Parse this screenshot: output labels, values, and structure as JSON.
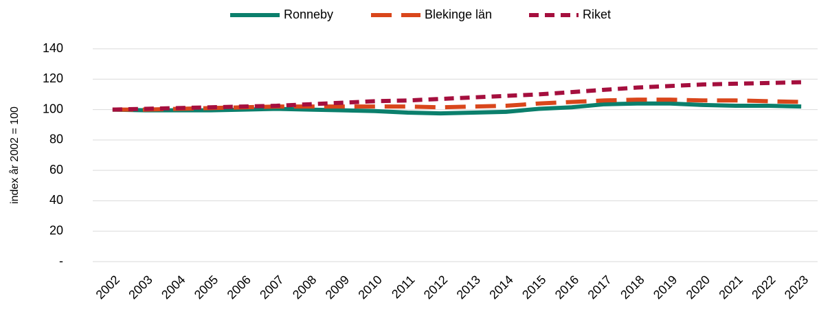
{
  "chart_data": {
    "type": "line",
    "y_label": "index år 2002 = 100",
    "categories": [
      "2002",
      "2003",
      "2004",
      "2005",
      "2006",
      "2007",
      "2008",
      "2009",
      "2010",
      "2011",
      "2012",
      "2013",
      "2014",
      "2015",
      "2016",
      "2017",
      "2018",
      "2019",
      "2020",
      "2021",
      "2022",
      "2023"
    ],
    "series": [
      {
        "name": "Ronneby",
        "color": "#0b7f6c",
        "dash": "solid",
        "values": [
          100,
          99.5,
          99.5,
          99.5,
          100,
          100.5,
          100,
          99.5,
          99,
          98,
          97.5,
          98,
          98.5,
          100.5,
          101.5,
          103.5,
          104,
          104,
          103,
          102.5,
          102.5,
          102
        ]
      },
      {
        "name": "Blekinge län",
        "color": "#d9461b",
        "dash": "long",
        "values": [
          100,
          100,
          100.5,
          101,
          101.5,
          102,
          102,
          102,
          102,
          102,
          101.5,
          102,
          102.5,
          104,
          105,
          106,
          106.5,
          106.5,
          106,
          106,
          105.5,
          105
        ]
      },
      {
        "name": "Riket",
        "color": "#a50f3e",
        "dash": "short",
        "values": [
          100,
          100.5,
          101,
          101.5,
          102,
          102.5,
          103.5,
          104.5,
          105.5,
          106,
          107,
          108,
          109,
          110,
          111.5,
          113,
          114.5,
          115.5,
          116.5,
          117,
          117.5,
          118
        ]
      }
    ],
    "ylim": [
      0,
      140
    ],
    "yticks": [
      {
        "value": 0,
        "label": "-"
      },
      20,
      40,
      60,
      80,
      100,
      120,
      140
    ],
    "grid": true,
    "legend": "top"
  }
}
